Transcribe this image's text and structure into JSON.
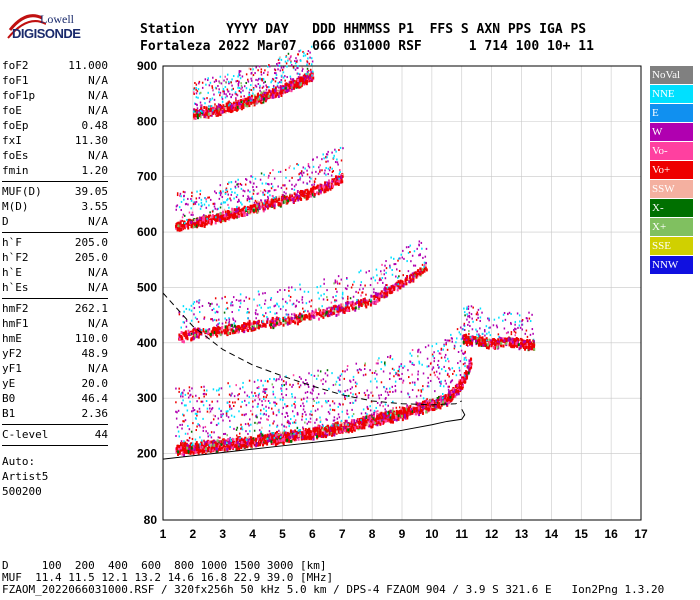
{
  "logo": {
    "line1": "Lowell",
    "line2": "DIGISONDE"
  },
  "header": {
    "labels": "Station    YYYY DAY   DDD HHMMSS P1  FFS S AXN PPS IGA PS",
    "values": "Fortaleza 2022 Mar07  066 031000 RSF      1 714 100 10+ 11"
  },
  "params": {
    "group1": [
      {
        "k": "foF2",
        "v": "11.000"
      },
      {
        "k": "foF1",
        "v": "N/A"
      },
      {
        "k": "foF1p",
        "v": "N/A"
      },
      {
        "k": "foE",
        "v": "N/A"
      },
      {
        "k": "foEp",
        "v": "0.48"
      },
      {
        "k": "fxI",
        "v": "11.30"
      },
      {
        "k": "foEs",
        "v": "N/A"
      },
      {
        "k": "fmin",
        "v": "1.20"
      }
    ],
    "group2": [
      {
        "k": "MUF(D)",
        "v": "39.05"
      },
      {
        "k": "M(D)",
        "v": "3.55"
      },
      {
        "k": "D",
        "v": "N/A"
      }
    ],
    "group3": [
      {
        "k": "h`F",
        "v": "205.0"
      },
      {
        "k": "h`F2",
        "v": "205.0"
      },
      {
        "k": "h`E",
        "v": "N/A"
      },
      {
        "k": "h`Es",
        "v": "N/A"
      }
    ],
    "group4": [
      {
        "k": "hmF2",
        "v": "262.1"
      },
      {
        "k": "hmF1",
        "v": "N/A"
      },
      {
        "k": "hmE",
        "v": "110.0"
      },
      {
        "k": "yF2",
        "v": "48.9"
      },
      {
        "k": "yF1",
        "v": "N/A"
      },
      {
        "k": "yE",
        "v": "20.0"
      },
      {
        "k": "B0",
        "v": "46.4"
      },
      {
        "k": "B1",
        "v": "2.36"
      }
    ],
    "group5": [
      {
        "k": "C-level",
        "v": "44"
      }
    ],
    "auto": [
      "Auto:",
      "Artist5",
      "500200"
    ]
  },
  "legend": [
    {
      "label": "NoVal",
      "color": "#808080"
    },
    {
      "label": "NNE",
      "color": "#00e0ff"
    },
    {
      "label": "E",
      "color": "#1090f0"
    },
    {
      "label": "W",
      "color": "#b000b0"
    },
    {
      "label": "Vo-",
      "color": "#ff40a0"
    },
    {
      "label": "Vo+",
      "color": "#ee0000"
    },
    {
      "label": "SSW",
      "color": "#f4b0a0"
    },
    {
      "label": "X-",
      "color": "#007000"
    },
    {
      "label": "X+",
      "color": "#80c060"
    },
    {
      "label": "SSE",
      "color": "#d0d000"
    },
    {
      "label": "NNW",
      "color": "#1010e0"
    }
  ],
  "footer": {
    "line1": "D     100  200  400  600  800 1000 1500 3000 [km]",
    "line2": "MUF  11.4 11.5 12.1 13.2 14.6 16.8 22.9 39.0 [MHz]",
    "line3": "FZAOM_2022066031000.RSF / 320fx256h 50 kHz 5.0 km / DPS-4 FZAOM 904 / 3.9 S 321.6 E   Ion2Png 1.3.20"
  },
  "chart_data": {
    "type": "scatter",
    "xlim": [
      1,
      17
    ],
    "ylim": [
      80,
      900
    ],
    "xticks": [
      1,
      2,
      3,
      4,
      5,
      6,
      7,
      8,
      9,
      10,
      11,
      12,
      13,
      14,
      15,
      16,
      17
    ],
    "yticks": [
      80,
      200,
      300,
      400,
      500,
      600,
      700,
      800,
      900
    ],
    "grid": true,
    "traces": [
      {
        "name": "1-hop F trace",
        "x": [
          1.4,
          2.0,
          3.0,
          4.0,
          5.0,
          6.0,
          7.0,
          8.0,
          9.0,
          10.0,
          10.5,
          11.0,
          11.3
        ],
        "y": [
          210,
          212,
          218,
          225,
          232,
          240,
          250,
          262,
          275,
          290,
          300,
          330,
          370
        ]
      },
      {
        "name": "2-hop F trace",
        "x": [
          1.5,
          2.0,
          3.0,
          4.0,
          5.0,
          6.0,
          7.0,
          8.0,
          9.0,
          9.8
        ],
        "y": [
          412,
          418,
          425,
          433,
          442,
          452,
          465,
          480,
          510,
          540
        ]
      },
      {
        "name": "3-hop F trace",
        "x": [
          1.4,
          2.0,
          3.0,
          4.0,
          5.0,
          6.0,
          7.0
        ],
        "y": [
          612,
          618,
          630,
          645,
          660,
          675,
          700
        ]
      },
      {
        "name": "4-hop F trace",
        "x": [
          2.0,
          3.0,
          4.0,
          5.0,
          6.0
        ],
        "y": [
          815,
          825,
          840,
          860,
          885
        ]
      },
      {
        "name": "oblique returns",
        "x": [
          11.0,
          11.5,
          12.0,
          12.5,
          13.0,
          13.4
        ],
        "y": [
          410,
          405,
          400,
          405,
          400,
          398
        ]
      }
    ],
    "profile_solid": {
      "x": [
        1.0,
        2.0,
        3.0,
        4.0,
        5.0,
        6.0,
        7.0,
        8.0,
        9.0,
        10.0,
        10.5,
        11.0,
        11.1,
        11.0
      ],
      "y": [
        190,
        196,
        202,
        208,
        214,
        220,
        226,
        233,
        242,
        252,
        258,
        262,
        270,
        280
      ]
    },
    "profile_dashed": {
      "x": [
        1.0,
        2.0,
        3.0,
        4.0,
        5.0,
        6.0,
        7.0,
        8.0,
        9.0,
        10.0,
        10.8,
        11.0
      ],
      "y": [
        490,
        430,
        388,
        360,
        340,
        322,
        306,
        295,
        290,
        288,
        290,
        295
      ]
    }
  }
}
